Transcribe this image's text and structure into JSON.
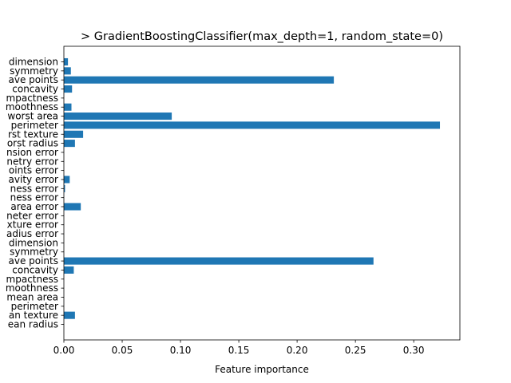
{
  "chart_data": {
    "type": "bar",
    "orientation": "horizontal",
    "title": "> GradientBoostingClassifier(max_depth=1, random_state=0)",
    "xlabel": "Feature importance",
    "ylabel": "",
    "xlim": [
      0,
      0.3396
    ],
    "xticks": [
      0.0,
      0.05,
      0.1,
      0.15,
      0.2,
      0.25,
      0.3
    ],
    "xtick_labels": [
      "0.00",
      "0.05",
      "0.10",
      "0.15",
      "0.20",
      "0.25",
      "0.30"
    ],
    "bar_color": "#1f77b4",
    "grid": false,
    "categories": [
      "ean radius",
      "an texture",
      " perimeter",
      "mean area",
      "moothness",
      "mpactness",
      " concavity",
      "ave points",
      "symmetry",
      "dimension",
      "adius error",
      "xture error",
      "neter error",
      "area error",
      "ness error",
      "ness error",
      "avity error",
      "oints error",
      "netry error",
      "nsion error",
      "orst radius",
      "rst texture",
      " perimeter",
      "worst area",
      "moothness",
      "mpactness",
      " concavity",
      "ave points",
      "symmetry",
      "dimension"
    ],
    "values": [
      0.0,
      0.0095,
      0.0,
      0.0,
      0.0,
      0.0,
      0.0085,
      0.2655,
      0.0,
      0.0,
      0.0,
      0.0,
      0.0,
      0.0145,
      0.0,
      0.001,
      0.005,
      0.0,
      0.0,
      0.0,
      0.0095,
      0.0165,
      0.3225,
      0.0925,
      0.0065,
      0.0,
      0.007,
      0.2315,
      0.006,
      0.0035
    ]
  }
}
